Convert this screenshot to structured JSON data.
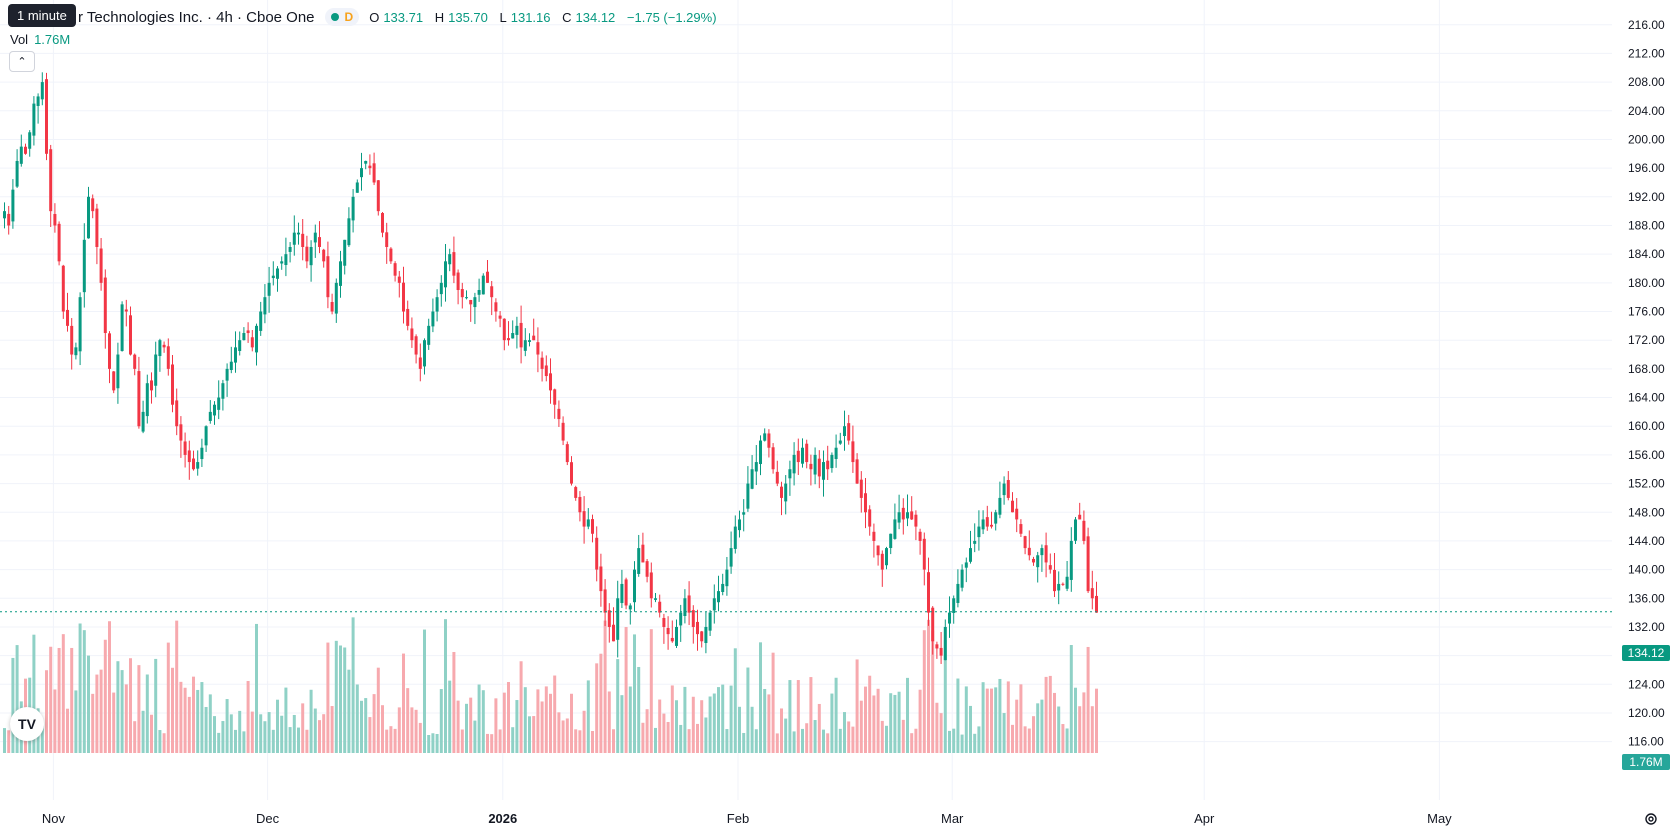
{
  "header": {
    "tooltip": "1 minute",
    "title": "r Technologies Inc. · 4h · Cboe One",
    "interval_badge": "D",
    "ohlc": {
      "o_label": "O",
      "o": "133.71",
      "h_label": "H",
      "h": "135.70",
      "l_label": "L",
      "l": "131.16",
      "c_label": "C",
      "c": "134.12",
      "change": "−1.75 (−1.29%)"
    }
  },
  "volume": {
    "label": "Vol",
    "value": "1.76M"
  },
  "price_tag": "134.12",
  "volume_tag": "1.76M",
  "logo_text": "TV",
  "colors": {
    "up": "#089981",
    "down": "#f23645",
    "up_vol": "#8fd1c6",
    "down_vol": "#f7a9ae",
    "grid": "#f0f3fa"
  },
  "chart_data": {
    "type": "candlestick",
    "y_ticks": [
      "216.00",
      "212.00",
      "208.00",
      "204.00",
      "200.00",
      "196.00",
      "192.00",
      "188.00",
      "184.00",
      "180.00",
      "176.00",
      "172.00",
      "168.00",
      "164.00",
      "160.00",
      "156.00",
      "152.00",
      "148.00",
      "144.00",
      "140.00",
      "136.00",
      "132.00",
      "128.00",
      "124.00",
      "120.00",
      "116.00"
    ],
    "x_ticks": [
      {
        "label": "Nov",
        "index": 12
      },
      {
        "label": "Dec",
        "index": 63
      },
      {
        "label": "2026",
        "index": 119
      },
      {
        "label": "Feb",
        "index": 175
      },
      {
        "label": "Mar",
        "index": 226
      },
      {
        "label": "Apr",
        "index": 286
      },
      {
        "label": "May",
        "index": 342
      }
    ],
    "ylim": [
      114,
      217.5
    ],
    "last_price": 134.12,
    "closes": [
      190,
      188,
      193,
      197,
      199,
      198,
      201,
      205,
      206,
      208,
      198,
      190,
      188,
      183,
      176,
      174,
      170,
      171,
      178,
      186,
      192,
      190,
      185,
      180,
      173,
      168,
      165,
      170,
      177,
      176,
      170,
      168,
      160,
      162,
      166,
      165,
      170,
      172,
      171,
      168,
      163,
      160,
      158,
      156,
      155,
      154,
      155,
      157,
      160,
      162,
      163,
      164,
      166,
      168,
      169,
      171,
      172,
      173,
      173,
      171,
      174,
      176,
      178,
      180,
      181,
      182,
      183,
      184,
      185,
      187,
      187,
      185,
      183,
      185,
      187,
      185,
      183,
      178,
      176,
      180,
      183,
      186,
      189,
      192,
      194,
      196,
      197,
      196,
      194,
      190,
      187,
      185,
      183,
      181,
      180,
      176,
      174,
      172,
      170,
      168,
      172,
      174,
      176,
      178,
      180,
      183,
      184,
      181,
      179,
      178,
      178,
      177,
      178,
      179,
      181,
      180,
      178,
      176,
      175,
      172,
      172,
      173,
      174,
      171,
      172,
      172,
      172,
      170,
      168,
      167,
      165,
      163,
      161,
      158,
      155,
      152,
      150,
      148,
      146,
      147,
      145,
      140,
      137,
      134,
      132,
      130,
      136,
      138,
      135,
      135,
      140,
      143,
      141,
      139,
      136,
      136,
      134,
      132,
      131,
      130,
      132,
      134,
      136,
      134,
      132,
      131,
      130,
      132,
      134,
      136,
      137,
      138,
      140,
      143,
      146,
      147,
      148,
      152,
      154,
      155,
      158,
      159,
      157,
      154,
      152,
      150,
      152,
      154,
      156,
      155,
      157,
      155,
      154,
      156,
      153,
      155,
      154,
      156,
      157,
      158,
      160,
      158,
      155,
      152,
      150,
      148,
      146,
      144,
      142,
      140,
      143,
      145,
      147,
      148,
      147,
      148,
      147,
      146,
      144,
      140,
      134,
      130,
      129,
      128,
      132,
      134,
      136,
      138,
      140,
      141,
      143,
      144,
      146,
      147,
      146,
      146,
      148,
      150,
      152,
      150,
      148,
      147,
      145,
      143,
      142,
      141,
      142,
      143,
      141,
      140,
      137,
      138,
      138,
      139,
      144,
      147,
      147,
      144,
      137,
      136,
      134
    ]
  }
}
